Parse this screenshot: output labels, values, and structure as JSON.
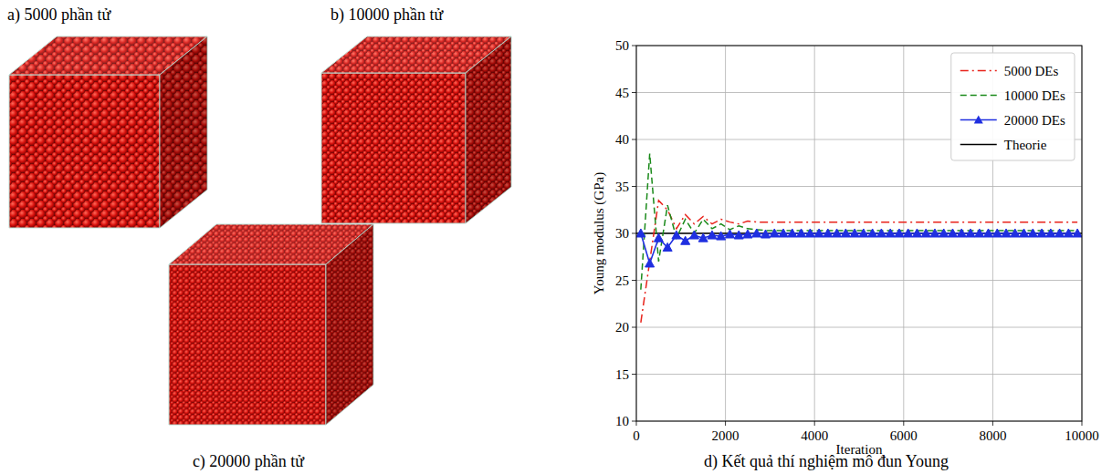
{
  "figure": {
    "panels": [
      {
        "label": "a) 5000 phần tử"
      },
      {
        "label": "b) 10000 phần tử"
      },
      {
        "label": "c) 20000 phần tử"
      },
      {
        "label": "d) Kết quả thí nghiệm mô đun Young"
      }
    ]
  },
  "chart_data": {
    "type": "line",
    "x_label": "Iteration",
    "y_label": "Young modulus (GPa)",
    "x": [
      100,
      300,
      500,
      700,
      900,
      1100,
      1300,
      1500,
      1700,
      1900,
      2100,
      2300,
      2500,
      2700,
      2900,
      3100,
      3300,
      3500,
      3700,
      3900,
      4100,
      4300,
      4500,
      4700,
      4900,
      5100,
      5300,
      5500,
      5700,
      5900,
      6100,
      6300,
      6500,
      6700,
      6900,
      7100,
      7300,
      7500,
      7700,
      7900,
      8100,
      8300,
      8500,
      8700,
      8900,
      9100,
      9300,
      9500,
      9700,
      9900
    ],
    "series": [
      {
        "name": "5000 DEs",
        "color": "#e8231b",
        "line_style": "dashdot",
        "values": [
          20.5,
          27,
          33.5,
          32.5,
          30.5,
          32,
          31,
          31.8,
          31,
          31.5,
          31.2,
          31,
          31.3,
          31.2,
          31.2,
          31.2,
          31.2,
          31.2,
          31.2,
          31.2,
          31.2,
          31.2,
          31.2,
          31.2,
          31.2,
          31.2,
          31.2,
          31.2,
          31.2,
          31.2,
          31.2,
          31.2,
          31.2,
          31.2,
          31.2,
          31.2,
          31.2,
          31.2,
          31.2,
          31.2,
          31.2,
          31.2,
          31.2,
          31.2,
          31.2,
          31.2,
          31.2,
          31.2,
          31.2,
          31.2
        ]
      },
      {
        "name": "10000 DEs",
        "color": "#1a8a1a",
        "line_style": "dashed",
        "values": [
          24,
          38.5,
          27,
          33,
          29.5,
          31.5,
          30,
          31.5,
          30.5,
          31,
          30.4,
          30.8,
          30.5,
          30.4,
          30.3,
          30.3,
          30.3,
          30.3,
          30.3,
          30.3,
          30.3,
          30.3,
          30.3,
          30.3,
          30.3,
          30.3,
          30.3,
          30.3,
          30.3,
          30.3,
          30.3,
          30.3,
          30.3,
          30.3,
          30.3,
          30.3,
          30.3,
          30.3,
          30.3,
          30.3,
          30.3,
          30.3,
          30.3,
          30.3,
          30.3,
          30.3,
          30.3,
          30.3,
          30.3,
          30.3
        ]
      },
      {
        "name": "20000 DEs",
        "color": "#1f2fe0",
        "line_style": "solid",
        "marker": "triangle",
        "values": [
          30,
          26.8,
          29.5,
          28.5,
          29.8,
          29.2,
          29.8,
          29.5,
          29.8,
          29.7,
          29.9,
          29.8,
          29.9,
          30,
          29.9,
          30,
          30,
          30,
          30,
          30,
          30,
          30,
          30,
          30,
          30,
          30,
          30,
          30,
          30,
          30,
          30,
          30,
          30,
          30,
          30,
          30,
          30,
          30,
          30,
          30,
          30,
          30,
          30,
          30,
          30,
          30,
          30,
          30,
          30,
          30
        ]
      },
      {
        "name": "Theorie",
        "color": "#000000",
        "line_style": "solid",
        "x": [
          0,
          10000
        ],
        "values": [
          30,
          30
        ]
      }
    ],
    "xlim": [
      0,
      10000
    ],
    "xticks": [
      0,
      2000,
      4000,
      6000,
      8000,
      10000
    ],
    "ylim": [
      10,
      50
    ],
    "yticks": [
      10,
      15,
      20,
      25,
      30,
      35,
      40,
      45,
      50
    ],
    "grid": true,
    "legend": "upper right"
  }
}
